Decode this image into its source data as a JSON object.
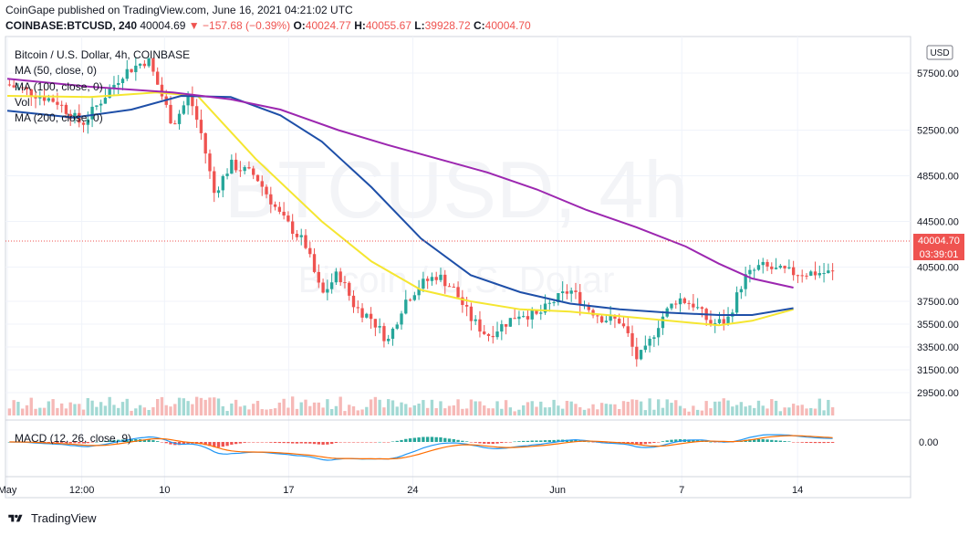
{
  "header": {
    "line1": "CoinGape published on TradingView.com, June 16, 2021 04:21:02 UTC",
    "symbol": "COINBASE:BTCUSD, 240",
    "price": "40004.69",
    "change": "−157.68 (−0.39%)",
    "o_label": "O:",
    "o": "40024.77",
    "h_label": "H:",
    "h": "40055.67",
    "l_label": "L:",
    "l": "39928.72",
    "c_label": "C:",
    "c": "40004.70"
  },
  "legend": {
    "title": "Bitcoin / U.S. Dollar, 4h, COINBASE",
    "ma50": "MA (50, close, 0)",
    "ma100": "MA (100, close, 0)",
    "vol": "Vol",
    "ma200": "MA (200, close, 0)",
    "macd": "MACD (12, 26, close, 9)"
  },
  "watermark": {
    "main": "BTCUSD, 4h",
    "sub": "Bitcoin / U.S. Dollar"
  },
  "currency_badge": "USD",
  "last_price_label": "40004.70",
  "countdown_label": "03:39:01",
  "macd_axis_label": "0.00",
  "footer": {
    "brand": "TradingView"
  },
  "colors": {
    "up": "#26a69a",
    "down": "#ef5350",
    "ma50": "#f5e631",
    "ma100": "#1e4fa8",
    "ma200": "#9c27b0",
    "macd": "#2196f3",
    "signal": "#ff6d00"
  },
  "chart_data": {
    "type": "candlestick",
    "title": "Bitcoin / U.S. Dollar, 4h, COINBASE",
    "y_ticks": [
      "57500.00",
      "52500.00",
      "48500.00",
      "44500.00",
      "40500.00",
      "37500.00",
      "35500.00",
      "33500.00",
      "31500.00",
      "29500.00"
    ],
    "x_ticks": [
      "May",
      "12:00",
      "10",
      "17",
      "24",
      "Jun",
      "7",
      "14"
    ],
    "ylim": [
      27500,
      59500
    ],
    "last_price": 40004.7,
    "price_path": [
      {
        "t": 0,
        "p": 56500
      },
      {
        "t": 0.06,
        "p": 55000
      },
      {
        "t": 0.09,
        "p": 53000
      },
      {
        "t": 0.14,
        "p": 57500
      },
      {
        "t": 0.17,
        "p": 58700
      },
      {
        "t": 0.2,
        "p": 53000
      },
      {
        "t": 0.22,
        "p": 55500
      },
      {
        "t": 0.235,
        "p": 52000
      },
      {
        "t": 0.25,
        "p": 47000
      },
      {
        "t": 0.27,
        "p": 49500
      },
      {
        "t": 0.3,
        "p": 48500
      },
      {
        "t": 0.33,
        "p": 45000
      },
      {
        "t": 0.36,
        "p": 42500
      },
      {
        "t": 0.38,
        "p": 38000
      },
      {
        "t": 0.4,
        "p": 40000
      },
      {
        "t": 0.42,
        "p": 37000
      },
      {
        "t": 0.44,
        "p": 36000
      },
      {
        "t": 0.46,
        "p": 34000
      },
      {
        "t": 0.48,
        "p": 37500
      },
      {
        "t": 0.5,
        "p": 39000
      },
      {
        "t": 0.52,
        "p": 39800
      },
      {
        "t": 0.54,
        "p": 38500
      },
      {
        "t": 0.56,
        "p": 36000
      },
      {
        "t": 0.58,
        "p": 34500
      },
      {
        "t": 0.6,
        "p": 35500
      },
      {
        "t": 0.62,
        "p": 36500
      },
      {
        "t": 0.64,
        "p": 36200
      },
      {
        "t": 0.66,
        "p": 37500
      },
      {
        "t": 0.68,
        "p": 38500
      },
      {
        "t": 0.7,
        "p": 37000
      },
      {
        "t": 0.72,
        "p": 36000
      },
      {
        "t": 0.74,
        "p": 35800
      },
      {
        "t": 0.75,
        "p": 34500
      },
      {
        "t": 0.76,
        "p": 32500
      },
      {
        "t": 0.77,
        "p": 33000
      },
      {
        "t": 0.79,
        "p": 36000
      },
      {
        "t": 0.81,
        "p": 37800
      },
      {
        "t": 0.83,
        "p": 37200
      },
      {
        "t": 0.85,
        "p": 35500
      },
      {
        "t": 0.87,
        "p": 35800
      },
      {
        "t": 0.89,
        "p": 39500
      },
      {
        "t": 0.91,
        "p": 40600
      },
      {
        "t": 0.93,
        "p": 40200
      },
      {
        "t": 0.95,
        "p": 40000
      }
    ],
    "series": [
      {
        "name": "MA (50, close, 0)",
        "points": [
          [
            0,
            55500
          ],
          [
            0.1,
            55400
          ],
          [
            0.18,
            55800
          ],
          [
            0.23,
            55500
          ],
          [
            0.3,
            50000
          ],
          [
            0.38,
            44500
          ],
          [
            0.44,
            41000
          ],
          [
            0.5,
            38500
          ],
          [
            0.56,
            37500
          ],
          [
            0.62,
            36800
          ],
          [
            0.68,
            36600
          ],
          [
            0.74,
            36200
          ],
          [
            0.8,
            35800
          ],
          [
            0.86,
            35400
          ],
          [
            0.9,
            35800
          ],
          [
            0.95,
            36800
          ]
        ]
      },
      {
        "name": "MA (100, close, 0)",
        "points": [
          [
            0,
            54200
          ],
          [
            0.08,
            53600
          ],
          [
            0.15,
            54300
          ],
          [
            0.21,
            55500
          ],
          [
            0.27,
            55400
          ],
          [
            0.33,
            53800
          ],
          [
            0.38,
            51500
          ],
          [
            0.44,
            47500
          ],
          [
            0.5,
            43000
          ],
          [
            0.56,
            39800
          ],
          [
            0.62,
            38300
          ],
          [
            0.68,
            37300
          ],
          [
            0.74,
            36800
          ],
          [
            0.8,
            36500
          ],
          [
            0.86,
            36300
          ],
          [
            0.9,
            36300
          ],
          [
            0.95,
            36900
          ]
        ]
      },
      {
        "name": "MA (200, close, 0)",
        "points": [
          [
            0,
            57000
          ],
          [
            0.1,
            56300
          ],
          [
            0.2,
            55800
          ],
          [
            0.27,
            55200
          ],
          [
            0.33,
            54300
          ],
          [
            0.4,
            52500
          ],
          [
            0.46,
            51200
          ],
          [
            0.52,
            50000
          ],
          [
            0.58,
            48800
          ],
          [
            0.64,
            47300
          ],
          [
            0.7,
            45500
          ],
          [
            0.76,
            44000
          ],
          [
            0.82,
            42300
          ],
          [
            0.86,
            40800
          ],
          [
            0.9,
            39500
          ],
          [
            0.95,
            38700
          ]
        ]
      }
    ]
  }
}
